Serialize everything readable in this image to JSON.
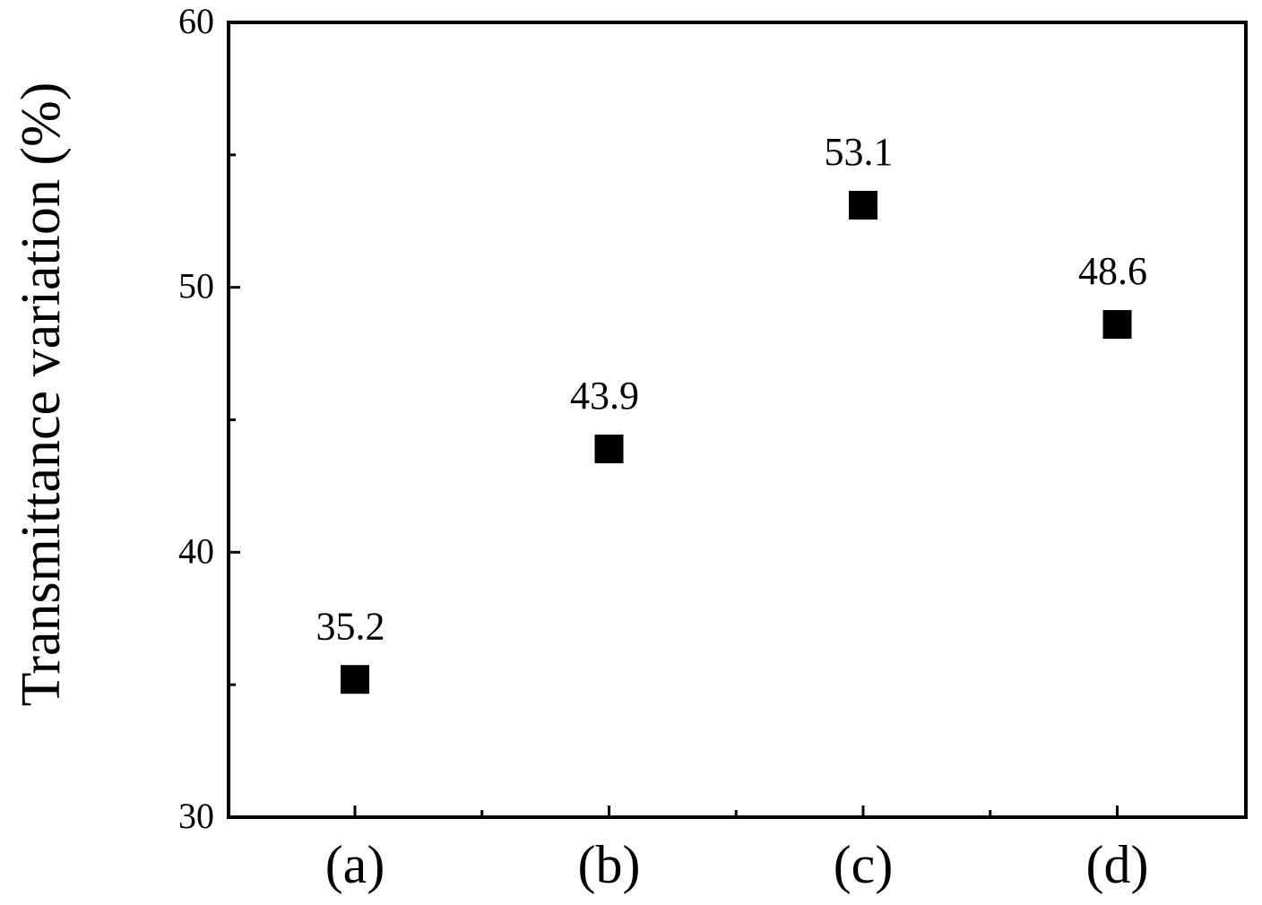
{
  "chart_data": {
    "type": "scatter",
    "title": "",
    "xlabel": "",
    "ylabel": "Transmittance variation (%)",
    "categories": [
      "(a)",
      "(b)",
      "(c)",
      "(d)"
    ],
    "values": [
      35.2,
      43.9,
      53.1,
      48.6
    ],
    "data_labels": [
      "35.2",
      "43.9",
      "53.1",
      "48.6"
    ],
    "ylim": [
      30,
      60
    ],
    "y_ticks": [
      30,
      40,
      50,
      60
    ],
    "y_minor_ticks": [
      35,
      45,
      55
    ],
    "grid": false,
    "legend": "none",
    "marker": "square",
    "marker_color": "#000000"
  }
}
